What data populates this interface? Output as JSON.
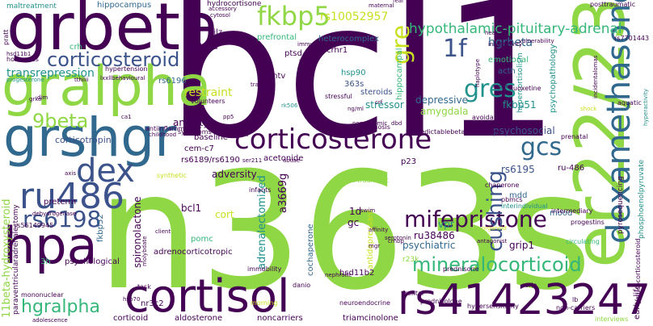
{
  "palette": {
    "dark_purple": "#440154",
    "indigo": "#3b528b",
    "blue": "#31688e",
    "teal": "#21918c",
    "green": "#35b779",
    "lime": "#8fd744",
    "yellow_green": "#c8e020"
  },
  "words": [
    {
      "id": "w-bcl1",
      "text": "bcl1",
      "color": "#440154"
    },
    {
      "id": "w-n363s",
      "text": "n363s",
      "color": "#8fd744"
    },
    {
      "id": "w-er22-23ek",
      "text": "er22/23ek",
      "color": "#8fd744"
    },
    {
      "id": "w-grbeta",
      "text": "grbeta",
      "color": "#440154"
    },
    {
      "id": "w-gralpha",
      "text": "gralpha",
      "color": "#8fd744"
    },
    {
      "id": "w-grshgr",
      "text": "grshgr",
      "color": "#31688e"
    },
    {
      "id": "w-hpa",
      "text": "hpa",
      "color": "#440154"
    },
    {
      "id": "w-cortisol",
      "text": "cortisol",
      "color": "#440154"
    },
    {
      "id": "w-rs41423247",
      "text": "rs41423247",
      "color": "#440154"
    },
    {
      "id": "w-dexamethasone",
      "text": "dexamethasone",
      "color": "#31688e"
    },
    {
      "id": "w-corticosterone",
      "text": "corticosterone",
      "color": "#440154"
    },
    {
      "id": "w-corticosteroid",
      "text": "corticosteroid",
      "color": "#3b528b"
    },
    {
      "id": "w-fkbp5",
      "text": "fkbp5",
      "color": "#8fd744"
    },
    {
      "id": "w-ru486",
      "text": "ru486",
      "color": "#3b528b"
    },
    {
      "id": "w-dex",
      "text": "dex",
      "color": "#3b528b"
    },
    {
      "id": "w-rs6198",
      "text": "rs6198",
      "color": "#3b528b"
    },
    {
      "id": "w-gcs",
      "text": "gcs",
      "color": "#31688e"
    },
    {
      "id": "w-gres",
      "text": "gres",
      "color": "#21918c"
    },
    {
      "id": "w-gre",
      "text": "gre",
      "color": "#c8e020"
    },
    {
      "id": "w-mifepristone",
      "text": "mifepristone",
      "color": "#440154"
    },
    {
      "id": "w-mineralocorticoid",
      "text": "mineralocorticoid",
      "color": "#35b779"
    },
    {
      "id": "w-hgralpha",
      "text": "hgralpha",
      "color": "#35b779"
    },
    {
      "id": "w-cushing",
      "text": "cushing",
      "color": "#3b528b"
    },
    {
      "id": "w-9beta",
      "text": "9beta",
      "color": "#8fd744"
    },
    {
      "id": "w-hypothalamic",
      "text": "hypothalamic-pituitary-adrenal",
      "color": "#35b779"
    },
    {
      "id": "w-rs10052957",
      "text": "rs10052957",
      "color": "#c8e020"
    },
    {
      "id": "w-1f",
      "text": "1f",
      "color": "#3b528b"
    },
    {
      "id": "w-hgrbeta",
      "text": "hgrbeta",
      "color": "#31688e"
    },
    {
      "id": "w-transrepression",
      "text": "transrepression",
      "color": "#21918c"
    },
    {
      "id": "w-restraint",
      "text": "restraint",
      "color": "#c8e020"
    },
    {
      "id": "w-hippocampus",
      "text": "hippocampus",
      "color": "#31688e"
    },
    {
      "id": "w-hydrocortisone",
      "text": "hydrocortisone",
      "color": "#440154"
    },
    {
      "id": "w-maltreatment",
      "text": "maltreatment",
      "color": "#21918c"
    },
    {
      "id": "w-heterocomplex",
      "text": "heterocomplex",
      "color": "#31688e"
    },
    {
      "id": "w-prefrontal",
      "text": "prefrontal",
      "color": "#35b779"
    },
    {
      "id": "w-crhr1",
      "text": "crhr1",
      "color": "#440154"
    },
    {
      "id": "w-crh",
      "text": "crh",
      "color": "#35b779"
    },
    {
      "id": "w-asthma",
      "text": "asthma",
      "color": "#440154"
    },
    {
      "id": "w-gilz",
      "text": "gilz",
      "color": "#440154"
    },
    {
      "id": "w-rs6196",
      "text": "rs6196",
      "color": "#31688e"
    },
    {
      "id": "w-ptsd",
      "text": "ptsd",
      "color": "#440154"
    },
    {
      "id": "w-mmtv",
      "text": "mmtv",
      "color": "#440154"
    },
    {
      "id": "w-363s",
      "text": "363s",
      "color": "#3b528b"
    },
    {
      "id": "w-steroids",
      "text": "steroids",
      "color": "#3b528b"
    },
    {
      "id": "w-depressive",
      "text": "depressive",
      "color": "#31688e"
    },
    {
      "id": "w-stressor",
      "text": "stressor",
      "color": "#21918c"
    },
    {
      "id": "w-hsp90",
      "text": "hsp90",
      "color": "#21918c"
    },
    {
      "id": "w-amygdala",
      "text": "amygdala",
      "color": "#8fd744"
    },
    {
      "id": "w-fkbp51",
      "text": "fkbp51",
      "color": "#21918c"
    },
    {
      "id": "w-emotional",
      "text": "emotional",
      "color": "#35b779"
    },
    {
      "id": "w-acth",
      "text": "acth",
      "color": "#31688e"
    },
    {
      "id": "w-psychopathology",
      "text": "psychopathology",
      "color": "#21918c"
    },
    {
      "id": "w-hippocampal",
      "text": "hippocampal",
      "color": "#35b779"
    },
    {
      "id": "w-anxiety",
      "text": "anxiety",
      "color": "#440154"
    },
    {
      "id": "w-corticotropin",
      "text": "corticotropin",
      "color": "#3b528b"
    },
    {
      "id": "w-baseline",
      "text": "baseline",
      "color": "#440154"
    },
    {
      "id": "w-cem-c7",
      "text": "cem-c7",
      "color": "#440154"
    },
    {
      "id": "w-rs6189",
      "text": "rs6189/rs6190",
      "color": "#440154"
    },
    {
      "id": "w-acetonide",
      "text": "acetonide",
      "color": "#440154"
    },
    {
      "id": "w-p23",
      "text": "p23",
      "color": "#440154"
    },
    {
      "id": "w-psychosocial",
      "text": "psychosocial",
      "color": "#3b528b"
    },
    {
      "id": "w-rs6195",
      "text": "rs6195",
      "color": "#3b528b"
    },
    {
      "id": "w-ru-486",
      "text": "ru-486",
      "color": "#440154"
    },
    {
      "id": "w-mdd",
      "text": "mdd",
      "color": "#31688e"
    },
    {
      "id": "w-adversity",
      "text": "adversity",
      "color": "#440154"
    },
    {
      "id": "w-a3669g",
      "text": "a3669g",
      "color": "#440154"
    },
    {
      "id": "w-ru38486",
      "text": "ru38486",
      "color": "#440154"
    },
    {
      "id": "w-preterm",
      "text": "preterm",
      "color": "#440154"
    },
    {
      "id": "w-bcl1-small",
      "text": "bcl1",
      "color": "#440154"
    },
    {
      "id": "w-cort",
      "text": "cort",
      "color": "#c8e020"
    },
    {
      "id": "w-1d",
      "text": "1d",
      "color": "#440154"
    },
    {
      "id": "w-gc",
      "text": "gc",
      "color": "#440154"
    },
    {
      "id": "w-vpr",
      "text": "vpr",
      "color": "#21918c"
    },
    {
      "id": "w-psychiatric",
      "text": "psychiatric",
      "color": "#31688e"
    },
    {
      "id": "w-grip1",
      "text": "grip1",
      "color": "#440154"
    },
    {
      "id": "w-mood",
      "text": "mood",
      "color": "#31688e"
    },
    {
      "id": "w-r23k",
      "text": "r23k",
      "color": "#8fd744"
    },
    {
      "id": "w-pomc",
      "text": "pomc",
      "color": "#35b779"
    },
    {
      "id": "w-adrenocorticotropic",
      "text": "adrenocorticotropic",
      "color": "#440154"
    },
    {
      "id": "w-psychological",
      "text": "psychological",
      "color": "#440154"
    },
    {
      "id": "w-3h",
      "text": "3h",
      "color": "#35b779"
    },
    {
      "id": "w-11beta",
      "text": "11beta-hydroxysteroid",
      "color": "#8fd744"
    },
    {
      "id": "w-paraventricular",
      "text": "paraventricularadrenalectomy",
      "color": "#440154"
    },
    {
      "id": "w-adrenalectomized",
      "text": "adrenalectomized",
      "color": "#21918c"
    },
    {
      "id": "w-spironolactone",
      "text": "spironolactone",
      "color": "#440154"
    },
    {
      "id": "w-fkbp52",
      "text": "fkbp52",
      "color": "#31688e"
    },
    {
      "id": "w-antidepressant",
      "text": "antidepressant",
      "color": "#c8e020"
    },
    {
      "id": "w-cochaperone",
      "text": "cochaperone",
      "color": "#31688e"
    },
    {
      "id": "w-hsd11b2",
      "text": "hsd11b2",
      "color": "#440154"
    },
    {
      "id": "w-nr3c2",
      "text": "nr3c2",
      "color": "#440154"
    },
    {
      "id": "w-corticoid",
      "text": "corticoid",
      "color": "#440154"
    },
    {
      "id": "w-aldosterone",
      "text": "aldosterone",
      "color": "#440154"
    },
    {
      "id": "w-noncarriers",
      "text": "noncarriers",
      "color": "#440154"
    },
    {
      "id": "w-triamcinolone",
      "text": "triamcinolone",
      "color": "#440154"
    },
    {
      "id": "w-rs56149945",
      "text": "rs56149945",
      "color": "#440154"
    },
    {
      "id": "w-mononuclear",
      "text": "mononuclear",
      "color": "#440154"
    },
    {
      "id": "w-hsp70",
      "text": "hsp70",
      "color": "#440154"
    },
    {
      "id": "w-adolescence",
      "text": "adolescence",
      "color": "#440154"
    },
    {
      "id": "w-task",
      "text": "task",
      "color": "#440154"
    },
    {
      "id": "w-frontal",
      "text": "frontal",
      "color": "#440154"
    },
    {
      "id": "w-prednisolone",
      "text": "prednisolone",
      "color": "#440154"
    },
    {
      "id": "w-neuroendocrine",
      "text": "neuroendocrine",
      "color": "#440154"
    },
    {
      "id": "w-hypersensitivity",
      "text": "hypersensitivity",
      "color": "#440154"
    },
    {
      "id": "w-non-carriers",
      "text": "non-carriers",
      "color": "#440154"
    },
    {
      "id": "w-early-life",
      "text": "early-life",
      "color": "#440154"
    },
    {
      "id": "w-interviews",
      "text": "interviews",
      "color": "#8fd744"
    },
    {
      "id": "w-lb",
      "text": "lb",
      "color": "#440154"
    },
    {
      "id": "w-morning",
      "text": "morning",
      "color": "#c8e020"
    },
    {
      "id": "w-danio",
      "text": "danio",
      "color": "#440154"
    },
    {
      "id": "w-rerio",
      "text": "rerio",
      "color": "#440154"
    },
    {
      "id": "w-immobility",
      "text": "immobility",
      "color": "#440154"
    },
    {
      "id": "w-nephrotic",
      "text": "nephrotic",
      "color": "#440154"
    },
    {
      "id": "w-prednisone",
      "text": "prednisone",
      "color": "#440154"
    },
    {
      "id": "w-progestins",
      "text": "progestins",
      "color": "#440154"
    },
    {
      "id": "w-circulating",
      "text": "circulating",
      "color": "#35b779"
    },
    {
      "id": "w-intermediary",
      "text": "intermediary",
      "color": "#440154"
    },
    {
      "id": "w-interindividual",
      "text": "interindividual",
      "color": "#21918c"
    },
    {
      "id": "w-pyrosequencing",
      "text": "pyrosequencing",
      "color": "#440154"
    },
    {
      "id": "w-phosphoenolpyruvate",
      "text": "phosphoenolpyruvate",
      "color": "#21918c"
    },
    {
      "id": "w-glucocorticosteroid",
      "text": "glucocorticosteroid",
      "color": "#440154"
    },
    {
      "id": "w-aquatic",
      "text": "aquatic",
      "color": "#440154"
    },
    {
      "id": "w-prenatal",
      "text": "prenatal",
      "color": "#440154"
    },
    {
      "id": "w-chaperone",
      "text": "chaperone",
      "color": "#440154"
    },
    {
      "id": "w-post-traumatic",
      "text": "post-traumatic",
      "color": "#8fd744"
    },
    {
      "id": "w-pbmcs",
      "text": "pbmcs",
      "color": "#440154"
    },
    {
      "id": "w-infants",
      "text": "infants",
      "color": "#440154"
    },
    {
      "id": "w-abuse",
      "text": "abuse",
      "color": "#440154"
    },
    {
      "id": "w-ser211",
      "text": "ser211",
      "color": "#440154"
    },
    {
      "id": "w-unpredictable",
      "text": "unpredictablebetamethasone",
      "color": "#440154"
    },
    {
      "id": "w-psychosis",
      "text": "psychosis",
      "color": "#440154"
    },
    {
      "id": "w-nongenomic",
      "text": "nongenomic",
      "color": "#440154"
    },
    {
      "id": "w-avoidance",
      "text": "avoidance",
      "color": "#440154"
    },
    {
      "id": "w-stressful",
      "text": "stressful",
      "color": "#440154"
    },
    {
      "id": "w-trauma",
      "text": "trauma",
      "color": "#440154"
    },
    {
      "id": "w-bdnf",
      "text": "bdnf",
      "color": "#440154"
    },
    {
      "id": "w-immunophilin",
      "text": "immunophilin",
      "color": "#440154"
    },
    {
      "id": "w-volunteers",
      "text": "volunteers",
      "color": "#440154"
    },
    {
      "id": "w-hypertension",
      "text": "hypertension",
      "color": "#440154"
    },
    {
      "id": "w-behavioural",
      "text": "lxxllbehavioural",
      "color": "#440154"
    },
    {
      "id": "w-antiinflammatory",
      "text": "antiinflammatory",
      "color": "#440154"
    },
    {
      "id": "w-symptoms",
      "text": "symptoms",
      "color": "#440154"
    },
    {
      "id": "w-childhood",
      "text": "childhood",
      "color": "#440154"
    },
    {
      "id": "w-synthetic",
      "text": "synthetic",
      "color": "#c8e020"
    },
    {
      "id": "w-dehydrogenase",
      "text": "dehydrogenase",
      "color": "#440154"
    },
    {
      "id": "w-hormones",
      "text": "hormones",
      "color": "#440154"
    },
    {
      "id": "w-hsd11b1",
      "text": "hsd11b1",
      "color": "#440154"
    },
    {
      "id": "w-progesterone",
      "text": "progesterone",
      "color": "#21918c"
    },
    {
      "id": "w-tthiiii",
      "text": "tthiiii",
      "color": "#440154"
    },
    {
      "id": "w-pratt",
      "text": "pratt",
      "color": "#440154"
    },
    {
      "id": "w-grko",
      "text": "grko",
      "color": "#440154"
    },
    {
      "id": "w-axis",
      "text": "axis",
      "color": "#440154"
    },
    {
      "id": "w-cytosol",
      "text": "cytosol",
      "color": "#440154"
    },
    {
      "id": "w-p160",
      "text": "p160",
      "color": "#440154"
    },
    {
      "id": "w-maternal",
      "text": "maternal",
      "color": "#440154"
    },
    {
      "id": "w-fear",
      "text": "fear",
      "color": "#440154"
    },
    {
      "id": "w-posttraumatic",
      "text": "posttraumatic",
      "color": "#440154"
    },
    {
      "id": "w-heat",
      "text": "heat",
      "color": "#440154"
    },
    {
      "id": "w-insensitivity",
      "text": "insensitivity",
      "color": "#440154"
    },
    {
      "id": "w-vulnerability",
      "text": "vulnerability",
      "color": "#440154"
    },
    {
      "id": "w-rs7701443",
      "text": "rs7701443",
      "color": "#440154"
    },
    {
      "id": "w-haplotype",
      "text": "haplotype",
      "color": "#440154"
    },
    {
      "id": "w-mc2r",
      "text": "mc2r",
      "color": "#440154"
    },
    {
      "id": "w-hypercortisolism",
      "text": "hypercortisolism",
      "color": "#21918c"
    },
    {
      "id": "w-incidentalomas",
      "text": "incidentalomas",
      "color": "#440154"
    },
    {
      "id": "w-hyperactivity",
      "text": "hyperactivity",
      "color": "#21918c"
    },
    {
      "id": "w-shock",
      "text": "shock",
      "color": "#c8e020"
    },
    {
      "id": "w-fluoxetine",
      "text": "fluoxetine",
      "color": "#440154"
    },
    {
      "id": "w-ng-ml",
      "text": "ng/ml",
      "color": "#440154"
    },
    {
      "id": "w-rk506",
      "text": "rk506",
      "color": "#21918c"
    },
    {
      "id": "w-ca1",
      "text": "ca1",
      "color": "#440154"
    },
    {
      "id": "w-pp5",
      "text": "pp5",
      "color": "#440154"
    },
    {
      "id": "w-dim",
      "text": "dim",
      "color": "#440154"
    },
    {
      "id": "w-dbd",
      "text": "dbd",
      "color": "#440154"
    },
    {
      "id": "w-mgr",
      "text": "mgr",
      "color": "#440154"
    },
    {
      "id": "w-crhbp",
      "text": "crhbp",
      "color": "#440154"
    },
    {
      "id": "w-antagonist",
      "text": "antagonist",
      "color": "#440154"
    },
    {
      "id": "w-serotonin",
      "text": "serotonin",
      "color": "#440154"
    },
    {
      "id": "w-organoid",
      "text": "organoid",
      "color": "#c8e020"
    },
    {
      "id": "w-molybdate",
      "text": "molybdate",
      "color": "#440154"
    },
    {
      "id": "w-client",
      "text": "client",
      "color": "#440154"
    },
    {
      "id": "w-accessory",
      "text": "accessory",
      "color": "#440154"
    },
    {
      "id": "w-affinity",
      "text": "affinity",
      "color": "#440154"
    },
    {
      "id": "w-crf",
      "text": "crf",
      "color": "#440154"
    },
    {
      "id": "w-swim",
      "text": "swim",
      "color": "#440154"
    }
  ]
}
